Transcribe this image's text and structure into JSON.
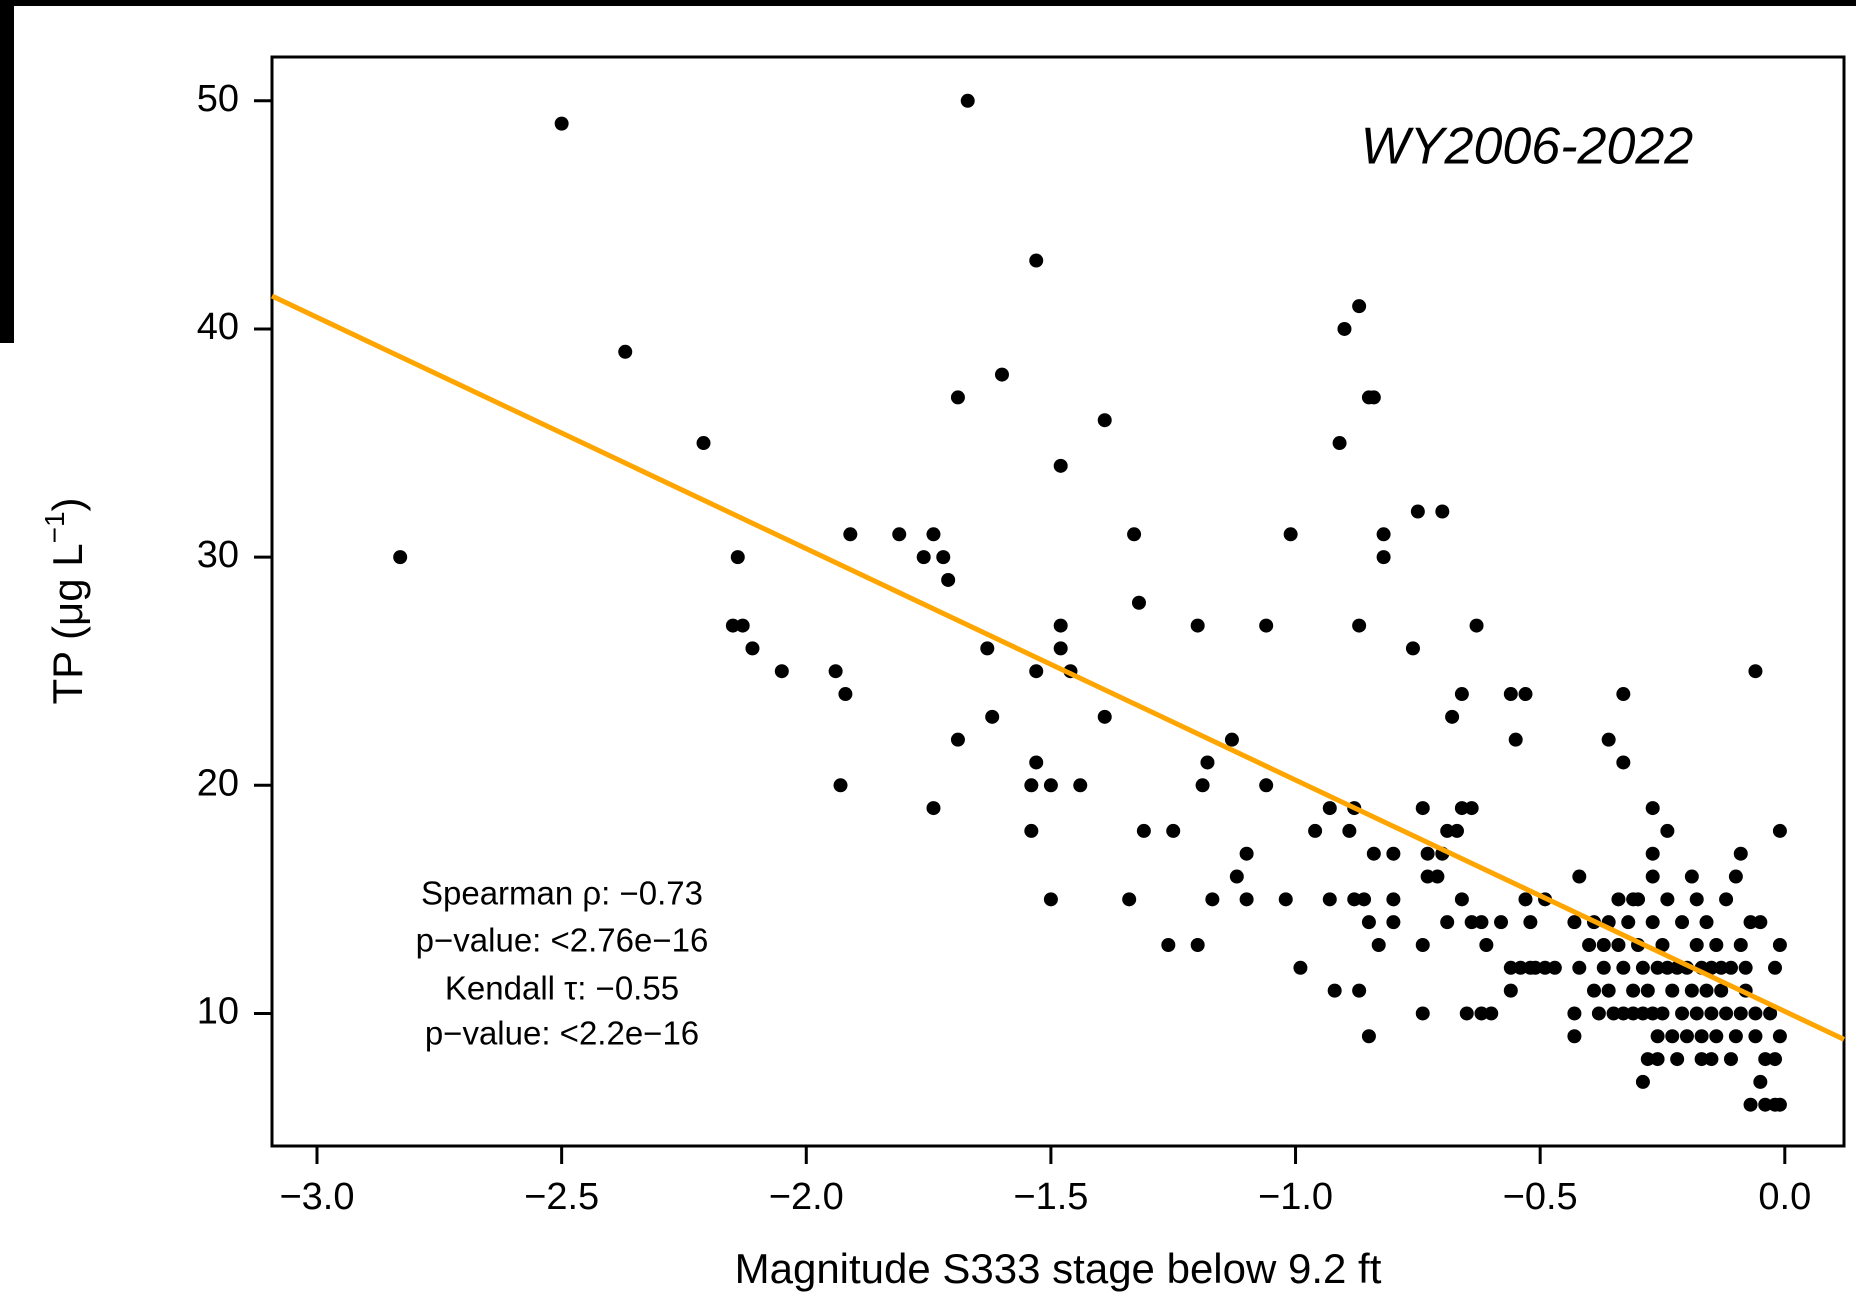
{
  "chart_data": {
    "type": "scatter",
    "xlabel": "Magnitude S333 stage below 9.2 ft",
    "ylabel": {
      "text": "TP (μg L",
      "superscript": "−1",
      "close": ")"
    },
    "annotation": "WY2006-2022",
    "stats": [
      "Spearman ρ:  −0.73",
      "p−value: <2.76e−16",
      "Kendall τ:  −0.55",
      "p−value: <2.2e−16"
    ],
    "color": "#000000",
    "trend": {
      "slope": -10.14,
      "intercept": 10.09,
      "color": "#ffa500"
    },
    "xlim": [
      -3.092,
      0.121
    ],
    "ylim": [
      4.19,
      51.92
    ],
    "xticks": [
      {
        "value": -3,
        "label": "−3.0"
      },
      {
        "value": -2.5,
        "label": "−2.5"
      },
      {
        "value": -2,
        "label": "−2.0"
      },
      {
        "value": -1.5,
        "label": "−1.5"
      },
      {
        "value": -1,
        "label": "−1.0"
      },
      {
        "value": -0.5,
        "label": "−0.5"
      },
      {
        "value": 0,
        "label": "0.0"
      }
    ],
    "yticks": [
      10,
      20,
      30,
      40,
      50
    ],
    "x": [
      -2.83,
      -2.5,
      -2.37,
      -2.21,
      -2.14,
      -2.15,
      -2.13,
      -2.11,
      -2.05,
      -1.94,
      -1.92,
      -1.93,
      -1.91,
      -1.81,
      -1.76,
      -1.74,
      -1.72,
      -1.71,
      -1.69,
      -1.67,
      -1.69,
      -1.74,
      -1.63,
      -1.62,
      -1.6,
      -1.53,
      -1.54,
      -1.53,
      -1.53,
      -1.54,
      -1.5,
      -1.5,
      -1.48,
      -1.48,
      -1.48,
      -1.46,
      -1.44,
      -1.39,
      -1.39,
      -1.33,
      -1.32,
      -1.34,
      -1.31,
      -1.25,
      -1.26,
      -1.2,
      -1.2,
      -1.19,
      -1.18,
      -1.17,
      -1.13,
      -1.12,
      -1.1,
      -1.1,
      -1.06,
      -1.06,
      -1.02,
      -1.01,
      -0.99,
      -0.96,
      -0.93,
      -0.93,
      -0.91,
      -0.9,
      -0.92,
      -0.89,
      -0.88,
      -0.87,
      -0.87,
      -0.87,
      -0.88,
      -0.86,
      -0.85,
      -0.85,
      -0.85,
      -0.84,
      -0.84,
      -0.83,
      -0.82,
      -0.82,
      -0.8,
      -0.8,
      -0.8,
      -0.76,
      -0.75,
      -0.74,
      -0.74,
      -0.74,
      -0.73,
      -0.73,
      -0.71,
      -0.7,
      -0.7,
      -0.69,
      -0.69,
      -0.67,
      -0.68,
      -0.66,
      -0.66,
      -0.66,
      -0.64,
      -0.65,
      -0.62,
      -0.6,
      -0.64,
      -0.62,
      -0.63,
      -0.61,
      -0.58,
      -0.56,
      -0.54,
      -0.56,
      -0.56,
      -0.53,
      -0.55,
      -0.53,
      -0.52,
      -0.52,
      -0.51,
      -0.49,
      -0.47,
      -0.49,
      -0.43,
      -0.43,
      -0.42,
      -0.43,
      -0.36,
      -0.33,
      -0.33,
      -0.34,
      -0.31,
      -0.29,
      -0.27,
      -0.27,
      -0.24,
      -0.06,
      -0.09,
      -0.01,
      -0.07,
      -0.05,
      -0.04,
      -0.02,
      -0.01,
      -0.42,
      -0.4,
      -0.39,
      -0.39,
      -0.38,
      -0.37,
      -0.37,
      -0.36,
      -0.36,
      -0.35,
      -0.34,
      -0.33,
      -0.33,
      -0.32,
      -0.31,
      -0.31,
      -0.3,
      -0.3,
      -0.29,
      -0.29,
      -0.28,
      -0.28,
      -0.27,
      -0.27,
      -0.27,
      -0.26,
      -0.26,
      -0.26,
      -0.25,
      -0.25,
      -0.24,
      -0.24,
      -0.23,
      -0.23,
      -0.22,
      -0.22,
      -0.21,
      -0.21,
      -0.2,
      -0.2,
      -0.19,
      -0.19,
      -0.18,
      -0.18,
      -0.18,
      -0.17,
      -0.17,
      -0.17,
      -0.16,
      -0.16,
      -0.15,
      -0.15,
      -0.15,
      -0.14,
      -0.14,
      -0.13,
      -0.13,
      -0.12,
      -0.12,
      -0.11,
      -0.11,
      -0.1,
      -0.1,
      -0.09,
      -0.09,
      -0.08,
      -0.08,
      -0.07,
      -0.06,
      -0.06,
      -0.05,
      -0.04,
      -0.03,
      -0.02,
      -0.01,
      -0.01,
      -0.02
    ],
    "values": [
      30,
      49,
      39,
      35,
      30,
      27,
      27,
      26,
      25,
      25,
      24,
      20,
      31,
      31,
      30,
      31,
      30,
      29,
      37,
      50,
      22,
      19,
      26,
      23,
      38,
      43,
      18,
      25,
      21,
      20,
      20,
      15,
      34,
      27,
      26,
      25,
      20,
      36,
      23,
      31,
      28,
      15,
      18,
      18,
      13,
      27,
      13,
      20,
      21,
      15,
      22,
      16,
      17,
      15,
      27,
      20,
      15,
      31,
      12,
      18,
      19,
      15,
      35,
      40,
      11,
      18,
      19,
      41,
      11,
      27,
      15,
      15,
      9,
      14,
      37,
      37,
      17,
      13,
      31,
      30,
      15,
      14,
      17,
      26,
      32,
      13,
      10,
      19,
      17,
      16,
      16,
      32,
      17,
      14,
      18,
      18,
      23,
      15,
      24,
      19,
      19,
      10,
      10,
      10,
      14,
      14,
      27,
      13,
      14,
      12,
      12,
      11,
      24,
      24,
      22,
      15,
      14,
      12,
      12,
      12,
      12,
      15,
      9,
      10,
      16,
      14,
      22,
      24,
      21,
      15,
      15,
      7,
      19,
      17,
      18,
      25,
      17,
      18,
      6,
      7,
      6,
      6,
      6,
      12,
      13,
      14,
      11,
      10,
      12,
      13,
      11,
      14,
      10,
      13,
      12,
      10,
      14,
      11,
      10,
      13,
      15,
      12,
      10,
      8,
      11,
      10,
      16,
      14,
      9,
      12,
      8,
      13,
      10,
      12,
      15,
      11,
      9,
      8,
      12,
      14,
      10,
      9,
      12,
      11,
      16,
      15,
      13,
      10,
      12,
      8,
      9,
      14,
      11,
      10,
      8,
      12,
      9,
      13,
      11,
      12,
      10,
      15,
      8,
      12,
      16,
      9,
      13,
      10,
      12,
      11,
      14,
      9,
      10,
      14,
      8,
      10,
      12,
      13,
      9,
      8
    ]
  }
}
